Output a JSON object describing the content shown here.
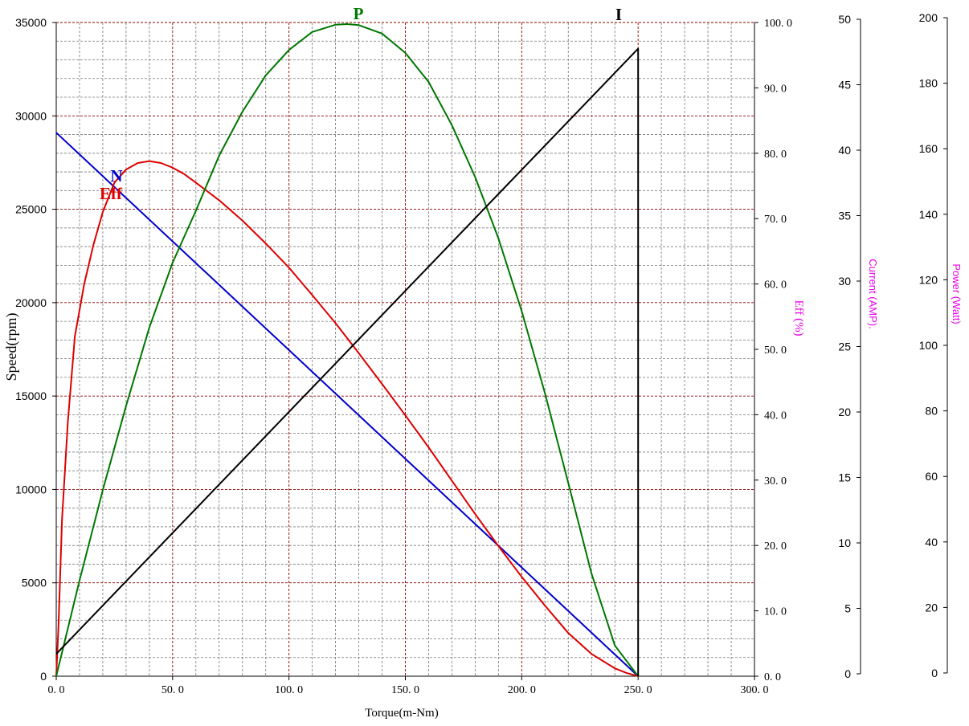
{
  "chart_data": {
    "type": "line",
    "x_axis": {
      "label": "Torque(m-Nm)",
      "range": [
        0,
        300
      ],
      "ticks": [
        0,
        50,
        100,
        150,
        200,
        250,
        300
      ],
      "tick_labels": [
        "0. 0",
        "50. 0",
        "100. 0",
        "150. 0",
        "200. 0",
        "250. 0",
        "300. 0"
      ]
    },
    "y_axes": {
      "speed": {
        "label": "Speed(rpm)",
        "range": [
          0,
          35000
        ],
        "ticks": [
          0,
          5000,
          10000,
          15000,
          20000,
          25000,
          30000,
          35000
        ],
        "tick_labels": [
          "0",
          "5000",
          "10000",
          "15000",
          "20000",
          "25000",
          "30000",
          "35000"
        ]
      },
      "eff": {
        "label": "Eff (%)",
        "range": [
          0,
          100
        ],
        "ticks": [
          0,
          10,
          20,
          30,
          40,
          50,
          60,
          70,
          80,
          90,
          100
        ],
        "tick_labels": [
          "0. 0",
          "10. 0",
          "20. 0",
          "30. 0",
          "40. 0",
          "50. 0",
          "60. 0",
          "70. 0",
          "80. 0",
          "90. 0",
          "100. 0"
        ]
      },
      "current": {
        "label": "Current (AMP).",
        "range": [
          0,
          50
        ],
        "ticks": [
          0,
          5,
          10,
          15,
          20,
          25,
          30,
          35,
          40,
          45,
          50
        ],
        "tick_labels": [
          "0",
          "5",
          "10",
          "15",
          "20",
          "25",
          "30",
          "35",
          "40",
          "45",
          "50"
        ]
      },
      "power": {
        "label": "Power (Watt)",
        "range": [
          0,
          200
        ],
        "ticks": [
          0,
          20,
          40,
          60,
          80,
          100,
          120,
          140,
          160,
          180,
          200
        ],
        "tick_labels": [
          "0",
          "20",
          "40",
          "60",
          "80",
          "100",
          "120",
          "140",
          "160",
          "180",
          "200"
        ]
      }
    },
    "grid": true,
    "stall_torque": 250,
    "series": [
      {
        "name": "N",
        "axis": "speed",
        "color": "#0000cc",
        "x": [
          0,
          250
        ],
        "y": [
          29100,
          0
        ]
      },
      {
        "name": "Eff",
        "axis": "eff",
        "color": "#dd0000",
        "x": [
          0,
          1,
          2.5,
          5,
          8,
          12,
          16,
          20,
          25,
          30,
          35,
          40,
          45,
          50,
          55,
          60,
          70,
          80,
          90,
          100,
          110,
          120,
          130,
          140,
          150,
          160,
          170,
          180,
          190,
          200,
          210,
          220,
          230,
          240,
          245,
          250
        ],
        "y": [
          0,
          8,
          24,
          39,
          52,
          60,
          66,
          71,
          75.5,
          77.5,
          78.5,
          78.8,
          78.5,
          77.8,
          76.8,
          75.5,
          72.8,
          69.7,
          66.2,
          62.5,
          58.3,
          54,
          49.4,
          44.7,
          39.9,
          35,
          29.9,
          24.8,
          19.9,
          15.2,
          10.8,
          6.6,
          3.4,
          1.2,
          0.5,
          0
        ]
      },
      {
        "name": "P",
        "axis": "power",
        "color": "#007700",
        "x": [
          0,
          10,
          20,
          30,
          40,
          50,
          60,
          70,
          80,
          90,
          100,
          110,
          120,
          125,
          130,
          140,
          150,
          160,
          170,
          180,
          190,
          200,
          210,
          220,
          230,
          240,
          250
        ],
        "y": [
          0,
          29.3,
          56.9,
          82.7,
          106.7,
          126.5,
          142.4,
          159.3,
          172.7,
          183.8,
          191.6,
          197.1,
          199.3,
          199.5,
          199.2,
          196.6,
          190.7,
          181.8,
          168.6,
          152.7,
          133.9,
          111.7,
          86.5,
          59.1,
          31.4,
          9.4,
          0
        ]
      },
      {
        "name": "I",
        "axis": "current",
        "color": "#000000",
        "x": [
          0,
          250,
          250
        ],
        "y": [
          1.7,
          48,
          0
        ]
      }
    ]
  }
}
